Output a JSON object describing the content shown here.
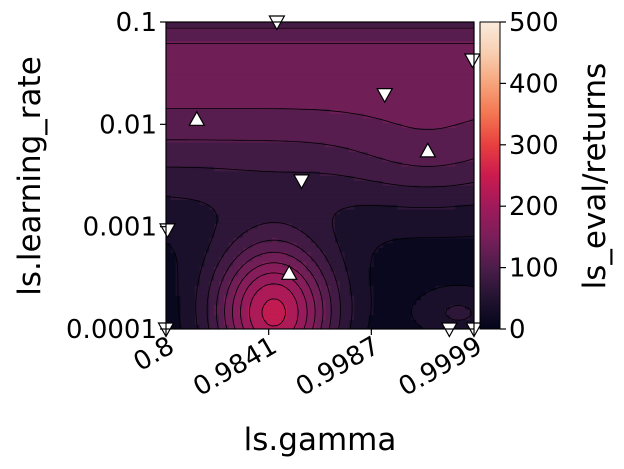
{
  "chart_data": {
    "type": "contour",
    "xlabel": "ls.gamma",
    "ylabel": "ls.learning_rate",
    "colorbar_label": "ls_eval/returns",
    "x_ticks": [
      "0.8",
      "0.9841",
      "0.9987",
      "0.9999"
    ],
    "y_ticks": [
      "0.1",
      "0.01",
      "0.001",
      "0.0001"
    ],
    "y_scale": "log",
    "colorbar_ticks": [
      "500",
      "400",
      "300",
      "200",
      "100",
      "0"
    ],
    "colorbar_range": [
      0,
      500
    ],
    "contour_levels": [
      25,
      50,
      75,
      100,
      125,
      150,
      175,
      200,
      225,
      250,
      275
    ],
    "peak_value": 290,
    "grid": false,
    "colormap": [
      "#03051a",
      "#221331",
      "#4c1d4b",
      "#7a1e5a",
      "#a11a5b",
      "#cb1b4f",
      "#e83f3f",
      "#f37651",
      "#f6a47b",
      "#f8cfb1",
      "#faebdd"
    ],
    "markers": [
      {
        "x_pos": 0.36,
        "lr": 0.1,
        "shape": "triangle-down"
      },
      {
        "x_pos": 0.1,
        "lr": 0.0112,
        "shape": "triangle-up"
      },
      {
        "x_pos": 0.71,
        "lr": 0.0195,
        "shape": "triangle-down"
      },
      {
        "x_pos": 0.995,
        "lr": 0.0425,
        "shape": "triangle-down"
      },
      {
        "x_pos": 0.85,
        "lr": 0.0055,
        "shape": "triangle-up"
      },
      {
        "x_pos": 0.44,
        "lr": 0.0028,
        "shape": "triangle-down"
      },
      {
        "x_pos": 0.005,
        "lr": 0.00093,
        "shape": "triangle-down"
      },
      {
        "x_pos": 0.4,
        "lr": 0.00035,
        "shape": "triangle-up"
      },
      {
        "x_pos": 0.0,
        "lr": 0.0001,
        "shape": "triangle-down"
      },
      {
        "x_pos": 0.92,
        "lr": 0.0001,
        "shape": "triangle-down"
      },
      {
        "x_pos": 1.0,
        "lr": 0.0001,
        "shape": "triangle-down"
      }
    ]
  }
}
